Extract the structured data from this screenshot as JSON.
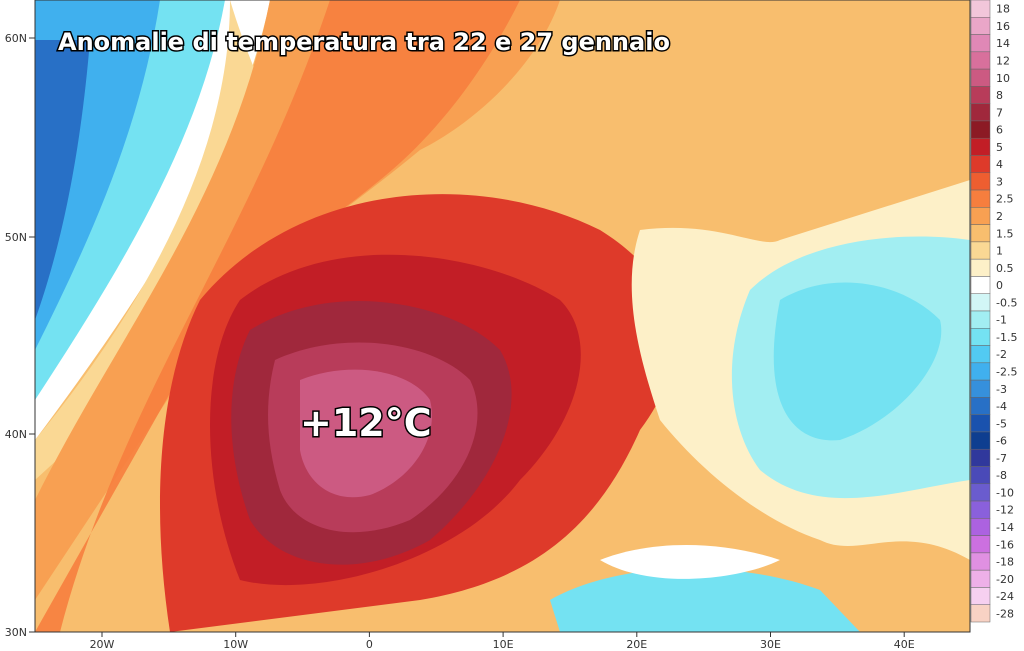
{
  "title": "Anomalie di temperatura tra 22 e 27 gennaio",
  "annotation": "+12°C",
  "lat_labels": [
    "60N",
    "50N",
    "40N",
    "30N"
  ],
  "lon_labels": [
    "20W",
    "10W",
    "0",
    "10E",
    "20E",
    "30E",
    "40E"
  ],
  "colorbar": [
    {
      "label": "18",
      "color": "#f2c6da"
    },
    {
      "label": "16",
      "color": "#eaa6c8"
    },
    {
      "label": "14",
      "color": "#e088b6"
    },
    {
      "label": "12",
      "color": "#d8709c"
    },
    {
      "label": "10",
      "color": "#cc5a82"
    },
    {
      "label": "8",
      "color": "#b83c5a"
    },
    {
      "label": "7",
      "color": "#a0283c"
    },
    {
      "label": "6",
      "color": "#8c1a24"
    },
    {
      "label": "5",
      "color": "#c21e26"
    },
    {
      "label": "4",
      "color": "#de3a2a"
    },
    {
      "label": "3",
      "color": "#ee5e30"
    },
    {
      "label": "2.5",
      "color": "#f67e3e"
    },
    {
      "label": "2",
      "color": "#f8a052"
    },
    {
      "label": "1.5",
      "color": "#f8be6e"
    },
    {
      "label": "1",
      "color": "#fad894"
    },
    {
      "label": "0.5",
      "color": "#fdf0c8"
    },
    {
      "label": "0",
      "color": "#ffffff"
    },
    {
      "label": "-0.5",
      "color": "#d2f6f6"
    },
    {
      "label": "-1",
      "color": "#a2eef2"
    },
    {
      "label": "-1.5",
      "color": "#74e2f2"
    },
    {
      "label": "-2",
      "color": "#52caf2"
    },
    {
      "label": "-2.5",
      "color": "#40b0ee"
    },
    {
      "label": "-3",
      "color": "#3690dc"
    },
    {
      "label": "-4",
      "color": "#2870c6"
    },
    {
      "label": "-5",
      "color": "#1a52ae"
    },
    {
      "label": "-6",
      "color": "#0e3e90"
    },
    {
      "label": "-7",
      "color": "#30389c"
    },
    {
      "label": "-8",
      "color": "#4a4ab8"
    },
    {
      "label": "-10",
      "color": "#6a5cce"
    },
    {
      "label": "-12",
      "color": "#8a60dc"
    },
    {
      "label": "-14",
      "color": "#ac62e0"
    },
    {
      "label": "-16",
      "color": "#cc70e0"
    },
    {
      "label": "-18",
      "color": "#e090e2"
    },
    {
      "label": "-20",
      "color": "#eeb0e8"
    },
    {
      "label": "-24",
      "color": "#f6d0f0"
    },
    {
      "label": "-28",
      "color": "#f8d2c4"
    }
  ]
}
